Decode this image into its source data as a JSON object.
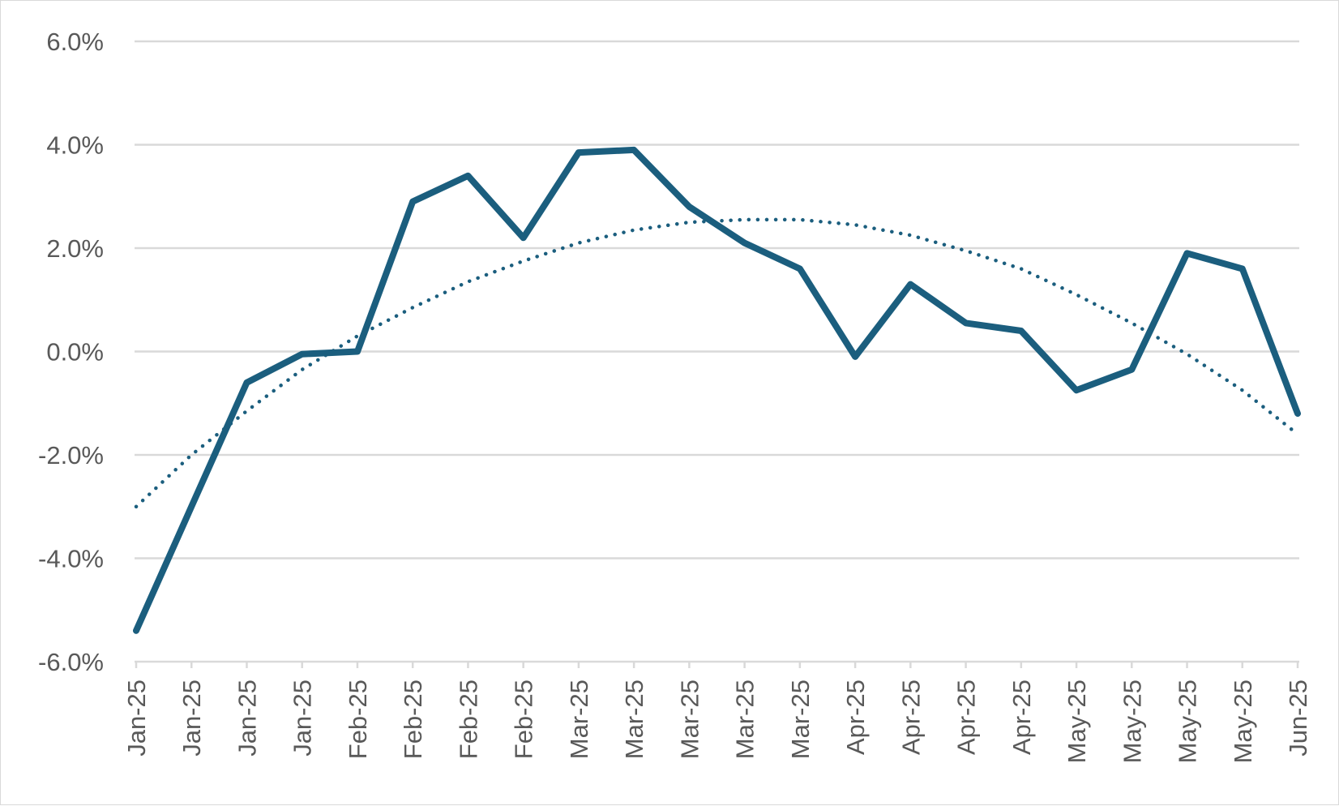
{
  "chart_data": {
    "type": "line",
    "title": "",
    "xlabel": "",
    "ylabel": "",
    "categories": [
      "Jan-25",
      "Jan-25",
      "Jan-25",
      "Jan-25",
      "Feb-25",
      "Feb-25",
      "Feb-25",
      "Feb-25",
      "Mar-25",
      "Mar-25",
      "Mar-25",
      "Mar-25",
      "Mar-25",
      "Apr-25",
      "Apr-25",
      "Apr-25",
      "Apr-25",
      "May-25",
      "May-25",
      "May-25",
      "May-25",
      "Jun-25"
    ],
    "ylim": [
      -6.0,
      6.0
    ],
    "yticks": [
      6.0,
      4.0,
      2.0,
      0.0,
      -2.0,
      -4.0,
      -6.0
    ],
    "ytick_labels": [
      "6.0%",
      "4.0%",
      "2.0%",
      "0.0%",
      "-2.0%",
      "-4.0%",
      "-6.0%"
    ],
    "grid": true,
    "legend": "none",
    "series": [
      {
        "style": "solid",
        "color": "#1b5e7e",
        "values": [
          -5.4,
          -3.0,
          -0.6,
          -0.05,
          0.0,
          2.9,
          3.4,
          2.2,
          3.85,
          3.9,
          2.8,
          2.1,
          1.6,
          -0.1,
          1.3,
          0.55,
          0.4,
          -0.75,
          -0.35,
          1.9,
          1.6,
          -1.2
        ]
      },
      {
        "style": "dotted",
        "trendline": "polynomial",
        "color": "#1b5e7e",
        "values": [
          -3.0,
          -2.0,
          -1.15,
          -0.35,
          0.3,
          0.85,
          1.35,
          1.75,
          2.1,
          2.35,
          2.5,
          2.55,
          2.55,
          2.45,
          2.25,
          1.95,
          1.6,
          1.1,
          0.55,
          -0.05,
          -0.75,
          -1.6
        ]
      }
    ]
  }
}
